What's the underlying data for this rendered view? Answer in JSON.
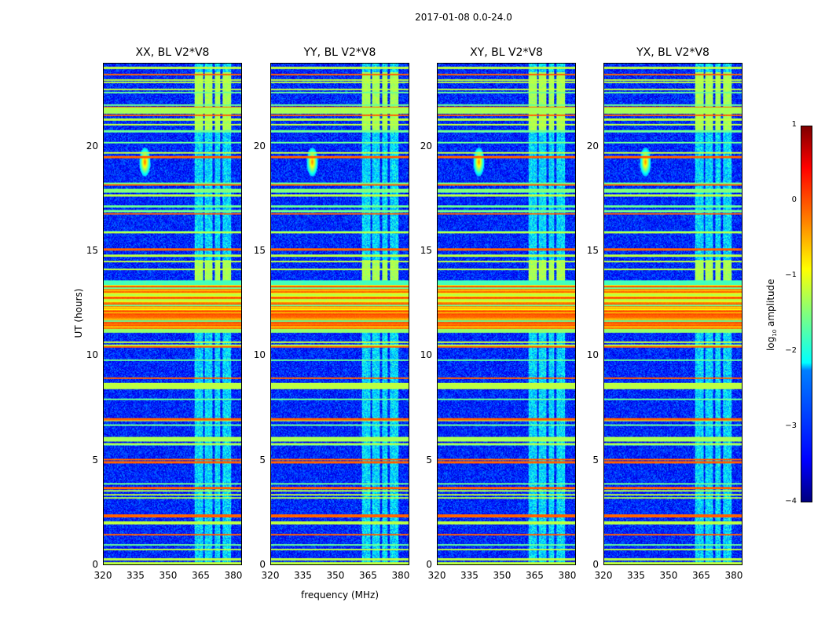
{
  "chart_data": {
    "type": "heatmap",
    "title": "2017-01-08 0.0-24.0",
    "xlabel": "frequency (MHz)",
    "ylabel": "UT (hours)",
    "xlim": [
      320,
      384
    ],
    "ylim": [
      0,
      24
    ],
    "xticks": [
      "320",
      "335",
      "350",
      "365",
      "380"
    ],
    "yticks": [
      "0",
      "5",
      "10",
      "15",
      "20"
    ],
    "panels": [
      {
        "title": "XX, BL V2*V8",
        "source_strength": 1
      },
      {
        "title": "YY, BL V2*V8",
        "source_strength": 0.8
      },
      {
        "title": "XY, BL V2*V8",
        "source_strength": 0.7
      },
      {
        "title": "YX, BL V2*V8",
        "source_strength": 0.6
      }
    ],
    "colorbar": {
      "label_prefix": "log",
      "label_sub": "10",
      "label_suffix": " amplitude",
      "range": [
        -4,
        1
      ],
      "ticks": [
        "1",
        "0",
        "−1",
        "−2",
        "−3",
        "−4"
      ],
      "colormap": "jet"
    },
    "background_log_amplitude": -3.2,
    "point_source": {
      "freq_mhz": 339,
      "ut_hours": 19.3,
      "log_amplitude": 0.3
    },
    "rfi_band_mhz": [
      [
        362,
        366
      ],
      [
        367,
        370.5
      ],
      [
        371.5,
        374
      ],
      [
        375,
        379
      ]
    ],
    "high_amplitude_band_ut": [
      11.2,
      13.5
    ]
  }
}
